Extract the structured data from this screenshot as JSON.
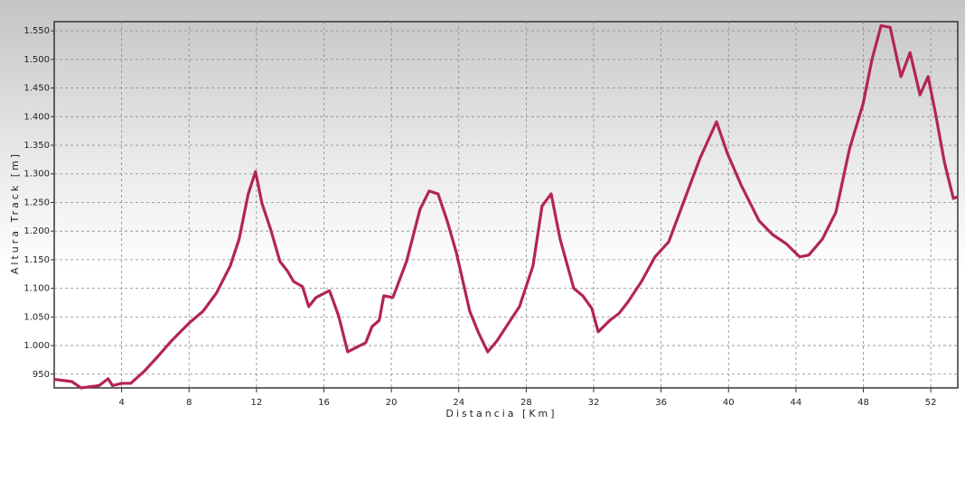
{
  "chart_data": {
    "type": "line",
    "x_label": "Distancia [Km]",
    "y_label": "Altura Track [m]",
    "xlim": [
      0,
      53.6
    ],
    "ylim": [
      926,
      1566
    ],
    "xticks": [
      4,
      8,
      12,
      16,
      20,
      24,
      28,
      32,
      36,
      40,
      44,
      48,
      52
    ],
    "yticks": [
      950,
      {
        "value": 1000,
        "label": "1.000"
      },
      {
        "value": 1050,
        "label": "1.050"
      },
      {
        "value": 1100,
        "label": "1.100"
      },
      {
        "value": 1150,
        "label": "1.150"
      },
      {
        "value": 1200,
        "label": "1.200"
      },
      {
        "value": 1250,
        "label": "1.250"
      },
      {
        "value": 1300,
        "label": "1.300"
      },
      {
        "value": 1350,
        "label": "1.350"
      },
      {
        "value": 1400,
        "label": "1.400"
      },
      {
        "value": 1450,
        "label": "1.450"
      },
      {
        "value": 1500,
        "label": "1.500"
      },
      {
        "value": 1550,
        "label": "1.550"
      }
    ],
    "grid": true,
    "series": [
      {
        "color": "#b3245a",
        "x": [
          0.0,
          1.05,
          1.59,
          2.66,
          3.2,
          3.46,
          4.0,
          4.54,
          5.34,
          6.15,
          6.95,
          8.03,
          8.83,
          9.63,
          10.44,
          10.97,
          11.51,
          11.94,
          12.32,
          12.85,
          13.39,
          13.82,
          14.2,
          14.73,
          15.1,
          15.53,
          16.33,
          16.87,
          17.41,
          17.94,
          18.48,
          18.85,
          19.28,
          19.55,
          20.09,
          20.9,
          21.7,
          22.24,
          22.77,
          23.31,
          23.85,
          24.65,
          25.19,
          25.72,
          26.26,
          27.06,
          27.6,
          28.4,
          28.94,
          29.48,
          30.01,
          30.82,
          31.35,
          31.89,
          32.27,
          32.96,
          33.5,
          34.03,
          34.84,
          35.64,
          36.45,
          37.25,
          38.32,
          39.29,
          39.93,
          40.74,
          41.81,
          42.61,
          43.42,
          44.22,
          44.76,
          45.57,
          46.37,
          47.18,
          47.98,
          48.52,
          49.05,
          49.59,
          50.23,
          50.77,
          51.36,
          51.84,
          52.27,
          52.81,
          53.34,
          53.61
        ],
        "values": [
          941,
          937,
          926,
          930,
          942,
          930,
          934,
          934,
          955,
          981,
          1008,
          1040,
          1060,
          1092,
          1139,
          1186,
          1265,
          1304,
          1249,
          1202,
          1147,
          1131,
          1112,
          1103,
          1068,
          1084,
          1096,
          1052,
          989,
          997,
          1005,
          1033,
          1044,
          1087,
          1084,
          1147,
          1238,
          1270,
          1265,
          1218,
          1163,
          1060,
          1021,
          989,
          1008,
          1044,
          1068,
          1139,
          1244,
          1265,
          1186,
          1100,
          1087,
          1065,
          1024,
          1044,
          1056,
          1076,
          1112,
          1155,
          1181,
          1244,
          1328,
          1391,
          1336,
          1281,
          1218,
          1194,
          1178,
          1155,
          1158,
          1186,
          1233,
          1344,
          1422,
          1501,
          1559,
          1556,
          1470,
          1512,
          1438,
          1470,
          1407,
          1320,
          1257,
          1260
        ]
      }
    ]
  }
}
